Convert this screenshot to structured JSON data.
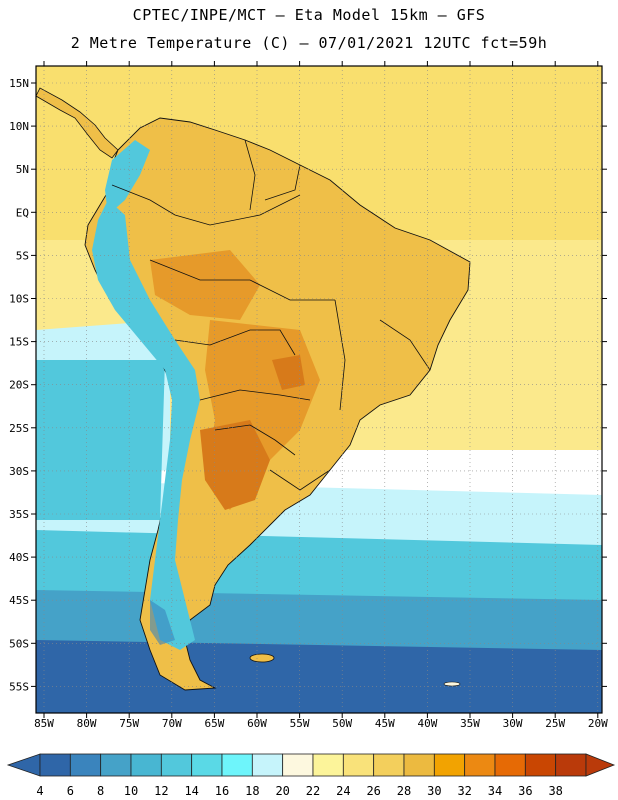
{
  "title_line1": "CPTEC/INPE/MCT –  Eta Model 15km – GFS",
  "title_line2": "2 Metre Temperature (C) – 07/01/2021 12UTC fct=59h",
  "lat_labels": [
    "15N",
    "10N",
    "5N",
    "EQ",
    "5S",
    "10S",
    "15S",
    "20S",
    "25S",
    "30S",
    "35S",
    "40S",
    "45S",
    "50S",
    "55S"
  ],
  "lon_labels": [
    "85W",
    "80W",
    "75W",
    "70W",
    "65W",
    "60W",
    "55W",
    "50W",
    "45W",
    "40W",
    "35W",
    "30W",
    "25W",
    "20W"
  ],
  "colorbar": {
    "colors": [
      "#2f66a8",
      "#3a84bd",
      "#45a2c8",
      "#48b6d2",
      "#52c8dc",
      "#5ad9e6",
      "#6ef5fb",
      "#c6f4fb",
      "#fdf8df",
      "#fcf49a",
      "#f9e27a",
      "#f3cf5c",
      "#ecba40",
      "#f2a301",
      "#ec8912",
      "#e66a05",
      "#c94602",
      "#ba3a0a"
    ],
    "labels": [
      "4",
      "6",
      "8",
      "10",
      "12",
      "14",
      "16",
      "18",
      "20",
      "22",
      "24",
      "26",
      "28",
      "30",
      "32",
      "34",
      "36",
      "38"
    ]
  },
  "map_colors": {
    "ocean_tropical": "#f9df6e",
    "ocean_warm": "#fbe98c",
    "ocean_cool": "#c6f4fb",
    "ocean_cold": "#52c8dc",
    "ocean_colder": "#45a2c8",
    "ocean_deep": "#2f66a8",
    "land": "#efbf48",
    "land_hot": "#e69a2a",
    "land_hotter": "#d77a1a",
    "andes": "#52c8dc",
    "andes_high": "#3a84bd"
  }
}
